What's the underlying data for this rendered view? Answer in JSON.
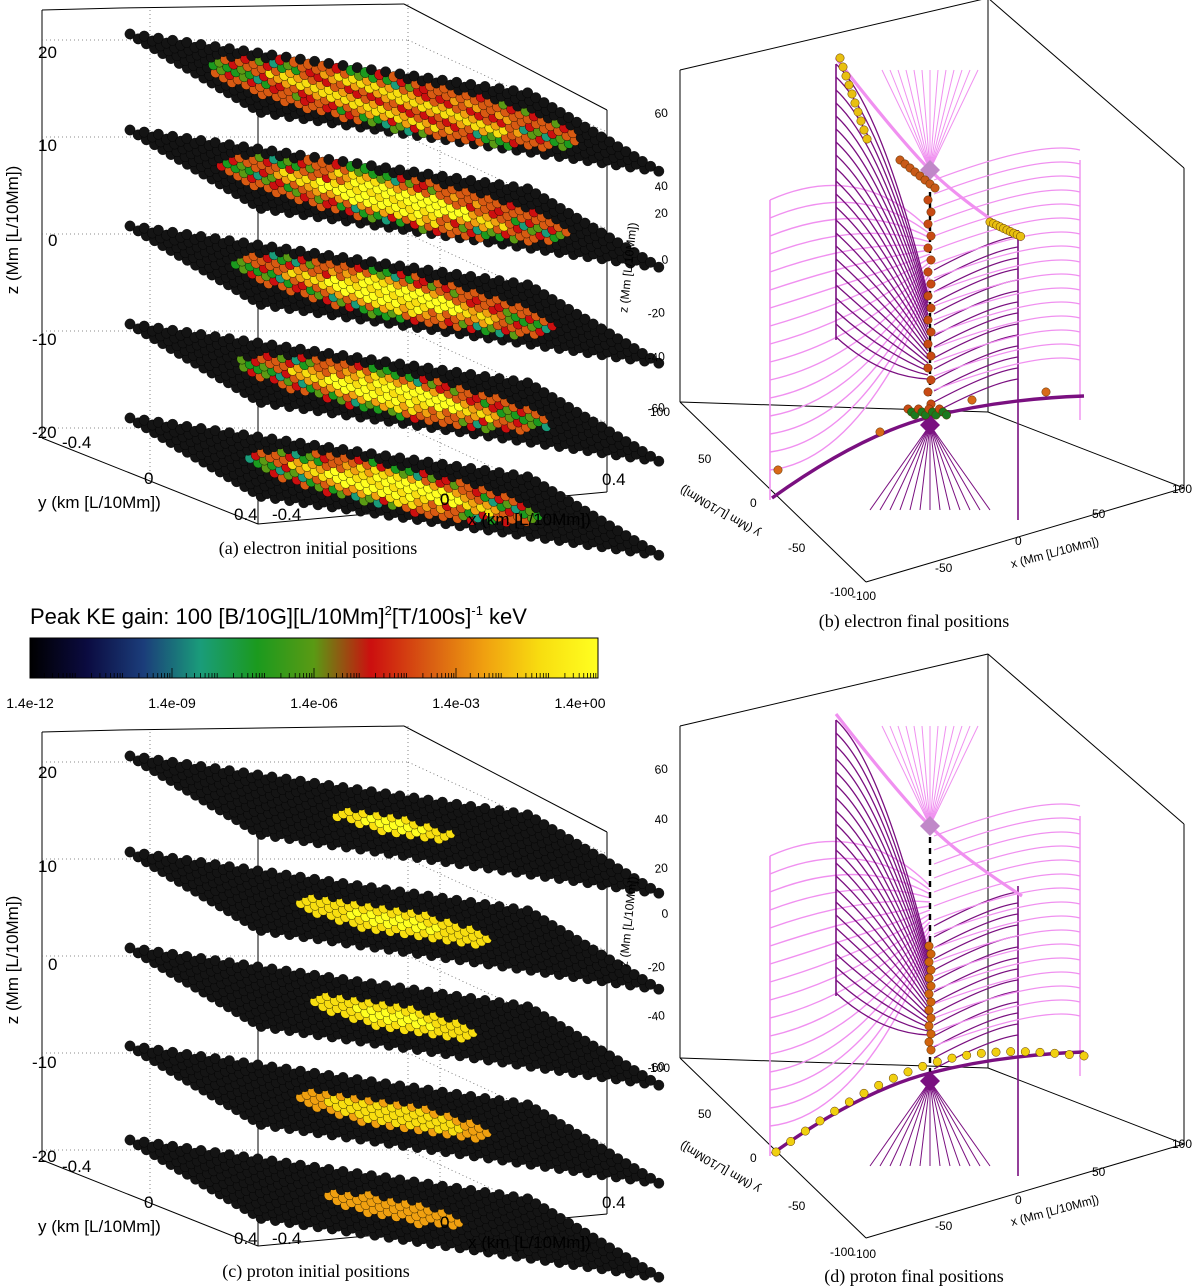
{
  "colorbar": {
    "title": "Peak KE gain: 100 [B/10G][L/10Mm]",
    "title_sup1": "2",
    "title_mid": "[T/100s]",
    "title_sup2": "-1",
    "title_unit": " keV",
    "ticks": [
      "1.4e-12",
      "1.4e-09",
      "1.4e-06",
      "1.4e-03",
      "1.4e+00"
    ],
    "stops": [
      "#000000",
      "#0b0b40",
      "#1b3d7a",
      "#1a9c7a",
      "#1b9a1e",
      "#5a9a14",
      "#cc0f0f",
      "#d85a12",
      "#f0a010",
      "#f8de10",
      "#ffff20"
    ]
  },
  "panel_a": {
    "caption": "(a) electron initial positions",
    "z_label": "z (Mm [L/10Mm])",
    "y_label": "y (km [L/10Mm])",
    "x_label": "x (km [L/10Mm])",
    "z_ticks": [
      "20",
      "10",
      "0",
      "-10",
      "-20"
    ],
    "y_ticks": [
      "-0.4",
      "0",
      "0.4"
    ],
    "x_ticks": [
      "-0.4",
      "0",
      "0.4"
    ]
  },
  "panel_b": {
    "caption": "(b) electron final positions",
    "z_label": "z (Mm [L/10Mm])",
    "y_label": "y (Mm [L/10Mm])",
    "x_label": "x (Mm [L/10Mm])",
    "z_ticks": [
      "60",
      "40",
      "20",
      "0",
      "-20",
      "-40",
      "-60"
    ],
    "y_ticks": [
      "100",
      "50",
      "0",
      "-50",
      "-100"
    ],
    "x_ticks": [
      "-100",
      "-50",
      "0",
      "50",
      "100"
    ]
  },
  "panel_c": {
    "caption": "(c) proton initial positions",
    "z_label": "z (Mm [L/10Mm])",
    "y_label": "y (km [L/10Mm])",
    "x_label": "x (km [L/10Mm])",
    "z_ticks": [
      "20",
      "10",
      "0",
      "-10",
      "-20"
    ],
    "y_ticks": [
      "-0.4",
      "0",
      "0.4"
    ],
    "x_ticks": [
      "-0.4",
      "0",
      "0.4"
    ]
  },
  "panel_d": {
    "caption": "(d) proton final positions",
    "z_label": "z (Mm [L/10Mm])",
    "y_label": "y (Mm [L/10Mm])",
    "x_label": "x (Mm [L/10Mm])",
    "z_ticks": [
      "60",
      "40",
      "20",
      "0",
      "-20",
      "-40",
      "-60"
    ],
    "y_ticks": [
      "100",
      "50",
      "0",
      "-50",
      "-100"
    ],
    "x_ticks": [
      "-100",
      "-50",
      "0",
      "50",
      "100"
    ]
  },
  "colors": {
    "light_field": "#f090f0",
    "dark_field": "#7a1080",
    "null_marker": "#c088c8",
    "bead_black": "#141414"
  }
}
